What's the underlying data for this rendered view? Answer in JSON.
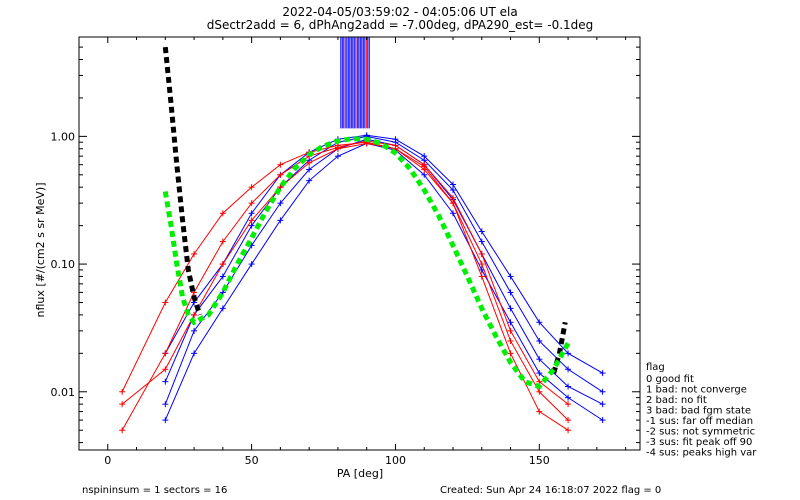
{
  "header": {
    "title_line1": "2022-04-05/03:59:02 - 04:05:06 UT ela",
    "title_line2": "dSectr2add = 6, dPhAng2add = -7.00deg, dPA290_est=  -0.1deg"
  },
  "footer": {
    "left": "nspininsum =  1  sectors = 16",
    "right": "Created: Sun Apr 24 16:18:07 2022   flag = 0"
  },
  "legend": {
    "title": "flag",
    "items": [
      " 0 good fit",
      " 1 bad: not converge",
      " 2 bad: no fit",
      " 3 bad: bad fgm state",
      "-1 sus: far off median",
      "-2 sus: not symmetric",
      "-3 sus: fit peak off 90",
      "-4 sus: peaks high var"
    ]
  },
  "colors": {
    "blue": "#0000ff",
    "red": "#ff0000",
    "black_fit": "#000000",
    "green_fit": "#00ee00",
    "axis": "#000000"
  },
  "chart_data": {
    "type": "line",
    "xlabel": "PA [deg]",
    "ylabel": "nflux [#/(cm2 s sr MeV)]",
    "xlim": [
      -10,
      185
    ],
    "ylim": [
      0.0035,
      6.0
    ],
    "yscale": "log",
    "x_ticks": [
      0,
      50,
      100,
      150
    ],
    "x_tick_labels": [
      "0",
      "50",
      "100",
      "150"
    ],
    "y_ticks": [
      0.01,
      0.1,
      1.0
    ],
    "y_tick_labels": [
      "0.01",
      "0.10",
      "1.00"
    ],
    "series": [
      {
        "color": "blue",
        "x": [
          20,
          30,
          40,
          50,
          60,
          70,
          80,
          90,
          100,
          110,
          120,
          130,
          140,
          150,
          160,
          172
        ],
        "y": [
          0.008,
          0.03,
          0.06,
          0.14,
          0.3,
          0.55,
          0.8,
          0.95,
          0.85,
          0.6,
          0.32,
          0.12,
          0.045,
          0.018,
          0.011,
          0.008
        ]
      },
      {
        "color": "blue",
        "x": [
          20,
          30,
          40,
          50,
          60,
          70,
          80,
          90,
          100,
          110,
          120,
          130,
          140,
          150,
          160,
          172
        ],
        "y": [
          0.012,
          0.04,
          0.08,
          0.2,
          0.4,
          0.65,
          0.9,
          1.0,
          0.9,
          0.65,
          0.38,
          0.15,
          0.06,
          0.025,
          0.015,
          0.01
        ]
      },
      {
        "color": "blue",
        "x": [
          20,
          30,
          40,
          50,
          60,
          70,
          80,
          90,
          100,
          110,
          120,
          130,
          140,
          150,
          160,
          172
        ],
        "y": [
          0.006,
          0.02,
          0.045,
          0.1,
          0.22,
          0.45,
          0.7,
          0.88,
          0.78,
          0.5,
          0.25,
          0.09,
          0.035,
          0.014,
          0.009,
          0.006
        ]
      },
      {
        "color": "blue",
        "x": [
          20,
          30,
          40,
          50,
          60,
          70,
          80,
          90,
          100,
          110,
          120,
          130,
          140,
          150,
          160,
          172
        ],
        "y": [
          0.02,
          0.05,
          0.1,
          0.25,
          0.5,
          0.75,
          0.95,
          1.02,
          0.95,
          0.7,
          0.42,
          0.18,
          0.08,
          0.035,
          0.02,
          0.014
        ]
      },
      {
        "color": "red",
        "x": [
          5,
          20,
          30,
          40,
          50,
          60,
          70,
          80,
          90,
          100,
          110,
          120,
          130,
          140,
          150,
          160
        ],
        "y": [
          0.01,
          0.05,
          0.12,
          0.25,
          0.4,
          0.6,
          0.75,
          0.85,
          0.9,
          0.8,
          0.55,
          0.3,
          0.1,
          0.025,
          0.01,
          0.006
        ]
      },
      {
        "color": "red",
        "x": [
          5,
          20,
          30,
          40,
          50,
          60,
          70,
          80,
          90,
          100,
          110,
          120,
          130,
          140,
          150,
          160
        ],
        "y": [
          0.005,
          0.02,
          0.06,
          0.15,
          0.3,
          0.5,
          0.7,
          0.82,
          0.92,
          0.85,
          0.6,
          0.33,
          0.12,
          0.03,
          0.012,
          0.008
        ]
      },
      {
        "color": "red",
        "x": [
          5,
          20,
          30,
          40,
          50,
          60,
          70,
          80,
          90,
          100,
          110,
          120,
          130,
          140,
          150,
          160
        ],
        "y": [
          0.008,
          0.015,
          0.04,
          0.1,
          0.22,
          0.4,
          0.62,
          0.8,
          0.88,
          0.8,
          0.58,
          0.3,
          0.08,
          0.02,
          0.007,
          0.005
        ]
      }
    ],
    "fit_black": {
      "x": [
        20,
        22,
        24,
        26,
        28,
        30,
        32
      ],
      "y": [
        5.0,
        1.8,
        0.6,
        0.22,
        0.09,
        0.055,
        0.04
      ],
      "x2": [
        155,
        157,
        159
      ],
      "y2": [
        0.014,
        0.02,
        0.035
      ]
    },
    "fit_green": {
      "x": [
        20,
        22,
        24,
        26,
        28,
        30,
        35,
        40,
        45,
        50,
        55,
        60,
        65,
        70,
        75,
        80,
        85,
        90,
        95,
        100,
        105,
        110,
        115,
        120,
        125,
        130,
        135,
        140,
        145,
        150,
        155,
        160
      ],
      "y": [
        0.37,
        0.2,
        0.1,
        0.055,
        0.04,
        0.035,
        0.04,
        0.06,
        0.1,
        0.16,
        0.26,
        0.4,
        0.56,
        0.72,
        0.84,
        0.92,
        0.96,
        0.95,
        0.88,
        0.74,
        0.56,
        0.38,
        0.24,
        0.14,
        0.08,
        0.045,
        0.027,
        0.017,
        0.012,
        0.011,
        0.015,
        0.024
      ]
    },
    "saturated_band": {
      "x_from": 81,
      "x_to": 91
    }
  }
}
